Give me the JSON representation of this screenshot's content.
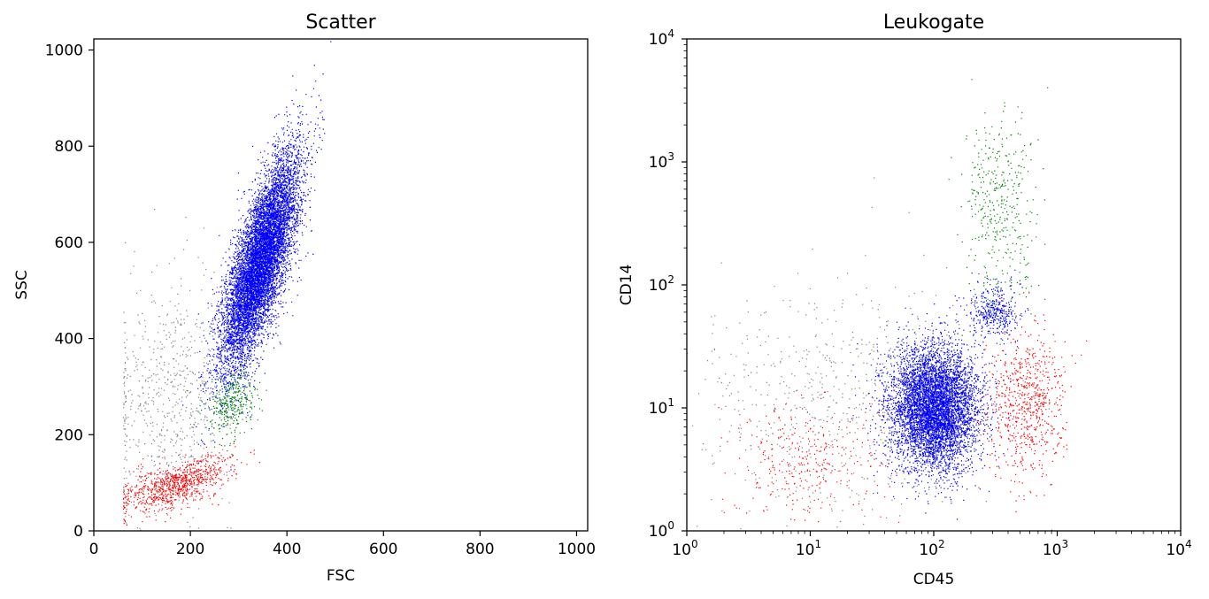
{
  "chart_data": [
    {
      "type": "scatter",
      "title": "Scatter",
      "xlabel": "FSC",
      "ylabel": "SSC",
      "xscale": "linear",
      "yscale": "linear",
      "xlim": [
        0,
        1023
      ],
      "ylim": [
        0,
        1023
      ],
      "xticks": [
        0,
        200,
        400,
        600,
        800,
        1000
      ],
      "yticks": [
        0,
        200,
        400,
        600,
        800,
        1000
      ],
      "xticklabels": [
        "0",
        "200",
        "400",
        "600",
        "800",
        "1000"
      ],
      "yticklabels": [
        "0",
        "200",
        "400",
        "600",
        "800",
        "1000"
      ],
      "legend": "none",
      "series": [
        {
          "color": "#0000ff",
          "count": 9000,
          "x_center": 345,
          "y_center": 560,
          "x_sd": 40,
          "y_sd": 110,
          "correlation": 0.75
        },
        {
          "color": "#008000",
          "count": 350,
          "x_center": 285,
          "y_center": 265,
          "x_sd": 25,
          "y_sd": 35,
          "correlation": 0.2
        },
        {
          "color": "#ff0000",
          "count": 900,
          "x_center": 170,
          "y_center": 95,
          "x_sd": 55,
          "y_sd": 28,
          "correlation": 0.6
        },
        {
          "color": "#808080",
          "count": 700,
          "x_center": 150,
          "y_center": 260,
          "x_sd": 70,
          "y_sd": 140,
          "correlation": 0.2
        }
      ]
    },
    {
      "type": "scatter",
      "title": "Leukogate",
      "xlabel": "CD45",
      "ylabel": "CD14",
      "xscale": "log",
      "yscale": "log",
      "xlim": [
        1,
        10000
      ],
      "ylim": [
        1,
        10000
      ],
      "xticks": [
        1,
        10,
        100,
        1000,
        10000
      ],
      "yticks": [
        1,
        10,
        100,
        1000,
        10000
      ],
      "tick_base": "10",
      "tick_exponents": [
        "0",
        "1",
        "2",
        "3",
        "4"
      ],
      "legend": "none",
      "series": [
        {
          "color": "#0000ff",
          "count": 6000,
          "x_center": 100,
          "y_center": 10,
          "x_spread_decades": 0.18,
          "y_spread_decades": 0.25
        },
        {
          "color": "#0000ff",
          "count": 400,
          "x_center": 300,
          "y_center": 60,
          "x_spread_decades": 0.1,
          "y_spread_decades": 0.12
        },
        {
          "color": "#008000",
          "count": 400,
          "x_center": 350,
          "y_center": 400,
          "x_spread_decades": 0.15,
          "y_spread_decades": 0.4
        },
        {
          "color": "#ff0000",
          "count": 700,
          "x_center": 550,
          "y_center": 10,
          "x_spread_decades": 0.15,
          "y_spread_decades": 0.3
        },
        {
          "color": "#ff0000",
          "count": 300,
          "x_center": 9,
          "y_center": 3.5,
          "x_spread_decades": 0.3,
          "y_spread_decades": 0.25
        },
        {
          "color": "#808080",
          "count": 700,
          "x_center": 15,
          "y_center": 10,
          "x_spread_decades": 0.6,
          "y_spread_decades": 0.5
        }
      ]
    }
  ]
}
